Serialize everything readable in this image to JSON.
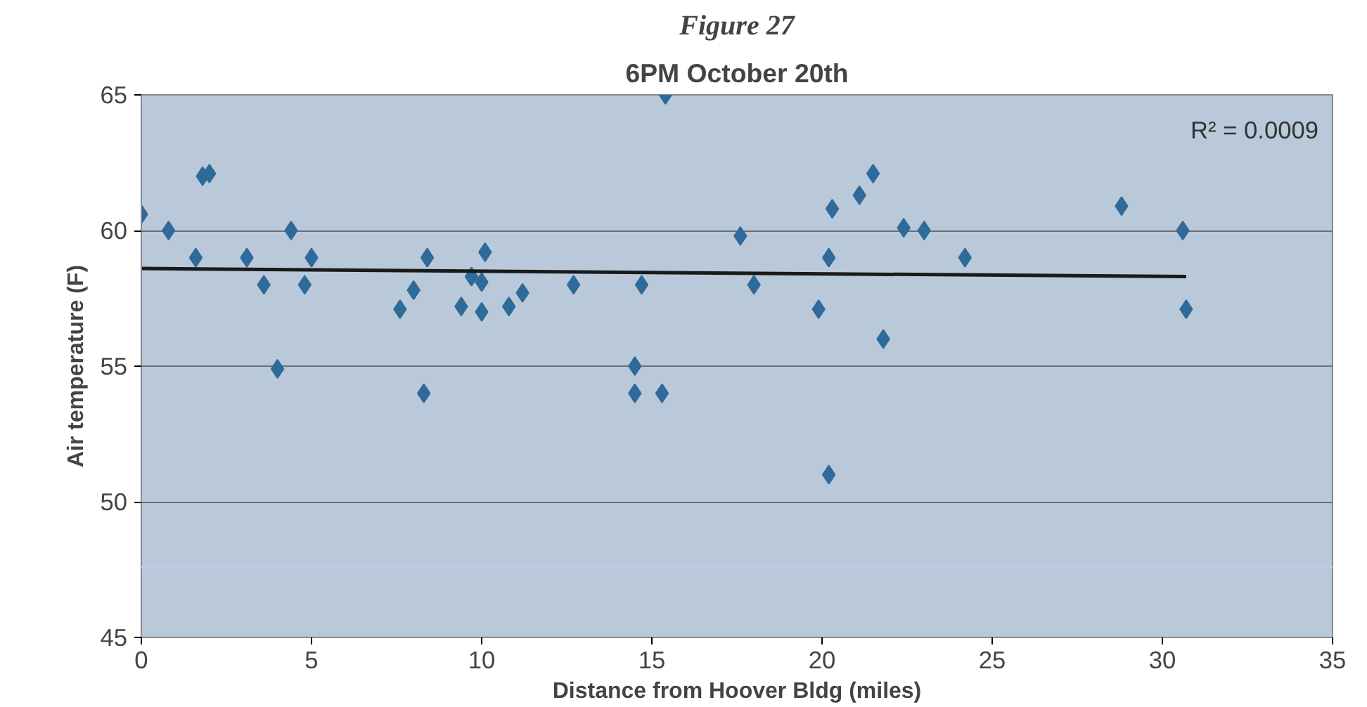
{
  "chart_data": {
    "type": "scatter",
    "title": "Figure 27",
    "subtitle": "6PM October 20th",
    "xlabel": "Distance from Hoover Bldg (miles)",
    "ylabel": "Air temperature (F)",
    "xlim": [
      0,
      35
    ],
    "xticks": [
      0,
      5,
      10,
      15,
      20,
      25,
      30,
      35
    ],
    "ylim": [
      45,
      65
    ],
    "yticks": [
      45,
      50,
      55,
      60,
      65
    ],
    "grid": "y",
    "series": [
      {
        "marker": "diamond",
        "color": "#2e6a9a",
        "x": [
          0,
          0.8,
          1.6,
          1.8,
          2.0,
          3.1,
          3.6,
          4.0,
          4.4,
          4.8,
          5.0,
          7.6,
          8.0,
          8.4,
          8.3,
          9.4,
          9.7,
          10.0,
          10.0,
          10.1,
          10.8,
          11.2,
          12.7,
          14.7,
          14.5,
          14.5,
          15.3,
          15.4,
          17.6,
          18.0,
          19.9,
          20.2,
          20.3,
          20.2,
          21.1,
          21.5,
          21.8,
          22.4,
          23.0,
          24.2,
          28.8,
          30.6,
          30.7
        ],
        "values": [
          60.6,
          60,
          59,
          62,
          62.1,
          59,
          58,
          54.9,
          60,
          58,
          59,
          57.1,
          57.8,
          59,
          54,
          57.2,
          58.3,
          58.1,
          57,
          59.2,
          57.2,
          57.7,
          58,
          58,
          55,
          54,
          54,
          65,
          59.8,
          58,
          57.1,
          59,
          60.8,
          51,
          61.3,
          62.1,
          56,
          60.1,
          60,
          59,
          60.9,
          60,
          57.1
        ]
      },
      {
        "type": "line",
        "marker": "none",
        "color": "#1a1a1a",
        "x": [
          0,
          30.7
        ],
        "values": [
          58.6,
          58.3
        ]
      }
    ],
    "ref_lines": [
      {
        "axis": "y",
        "value": 47.6,
        "color": "#c8c4e8"
      }
    ],
    "annotations": [
      "R² = 0.0009"
    ]
  }
}
